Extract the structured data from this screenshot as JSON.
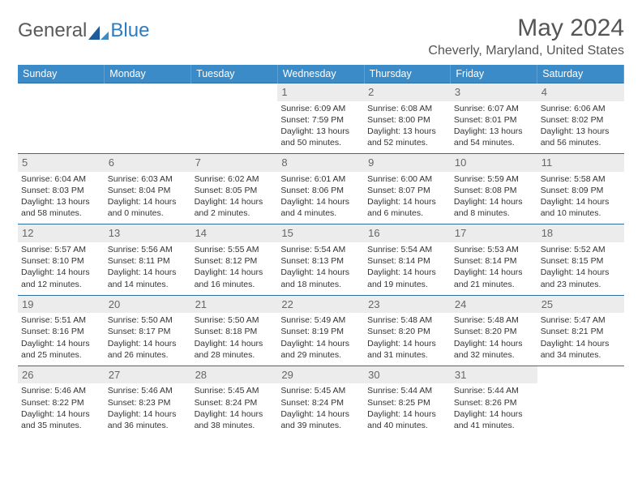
{
  "logo": {
    "part1": "General",
    "part2": "Blue"
  },
  "header": {
    "month_title": "May 2024",
    "location": "Cheverly, Maryland, United States"
  },
  "colors": {
    "header_bg": "#3b8bc8",
    "header_text": "#ffffff",
    "border": "#2f6ea1",
    "daynum_bg": "#ececec",
    "body_text": "#333333",
    "title_text": "#555555",
    "logo_grey": "#5a5a5a",
    "logo_blue": "#2f7bbf"
  },
  "weekdays": [
    "Sunday",
    "Monday",
    "Tuesday",
    "Wednesday",
    "Thursday",
    "Friday",
    "Saturday"
  ],
  "weeks": [
    [
      {
        "day": "",
        "sunrise": "",
        "sunset": "",
        "daylight": ""
      },
      {
        "day": "",
        "sunrise": "",
        "sunset": "",
        "daylight": ""
      },
      {
        "day": "",
        "sunrise": "",
        "sunset": "",
        "daylight": ""
      },
      {
        "day": "1",
        "sunrise": "Sunrise: 6:09 AM",
        "sunset": "Sunset: 7:59 PM",
        "daylight": "Daylight: 13 hours and 50 minutes."
      },
      {
        "day": "2",
        "sunrise": "Sunrise: 6:08 AM",
        "sunset": "Sunset: 8:00 PM",
        "daylight": "Daylight: 13 hours and 52 minutes."
      },
      {
        "day": "3",
        "sunrise": "Sunrise: 6:07 AM",
        "sunset": "Sunset: 8:01 PM",
        "daylight": "Daylight: 13 hours and 54 minutes."
      },
      {
        "day": "4",
        "sunrise": "Sunrise: 6:06 AM",
        "sunset": "Sunset: 8:02 PM",
        "daylight": "Daylight: 13 hours and 56 minutes."
      }
    ],
    [
      {
        "day": "5",
        "sunrise": "Sunrise: 6:04 AM",
        "sunset": "Sunset: 8:03 PM",
        "daylight": "Daylight: 13 hours and 58 minutes."
      },
      {
        "day": "6",
        "sunrise": "Sunrise: 6:03 AM",
        "sunset": "Sunset: 8:04 PM",
        "daylight": "Daylight: 14 hours and 0 minutes."
      },
      {
        "day": "7",
        "sunrise": "Sunrise: 6:02 AM",
        "sunset": "Sunset: 8:05 PM",
        "daylight": "Daylight: 14 hours and 2 minutes."
      },
      {
        "day": "8",
        "sunrise": "Sunrise: 6:01 AM",
        "sunset": "Sunset: 8:06 PM",
        "daylight": "Daylight: 14 hours and 4 minutes."
      },
      {
        "day": "9",
        "sunrise": "Sunrise: 6:00 AM",
        "sunset": "Sunset: 8:07 PM",
        "daylight": "Daylight: 14 hours and 6 minutes."
      },
      {
        "day": "10",
        "sunrise": "Sunrise: 5:59 AM",
        "sunset": "Sunset: 8:08 PM",
        "daylight": "Daylight: 14 hours and 8 minutes."
      },
      {
        "day": "11",
        "sunrise": "Sunrise: 5:58 AM",
        "sunset": "Sunset: 8:09 PM",
        "daylight": "Daylight: 14 hours and 10 minutes."
      }
    ],
    [
      {
        "day": "12",
        "sunrise": "Sunrise: 5:57 AM",
        "sunset": "Sunset: 8:10 PM",
        "daylight": "Daylight: 14 hours and 12 minutes."
      },
      {
        "day": "13",
        "sunrise": "Sunrise: 5:56 AM",
        "sunset": "Sunset: 8:11 PM",
        "daylight": "Daylight: 14 hours and 14 minutes."
      },
      {
        "day": "14",
        "sunrise": "Sunrise: 5:55 AM",
        "sunset": "Sunset: 8:12 PM",
        "daylight": "Daylight: 14 hours and 16 minutes."
      },
      {
        "day": "15",
        "sunrise": "Sunrise: 5:54 AM",
        "sunset": "Sunset: 8:13 PM",
        "daylight": "Daylight: 14 hours and 18 minutes."
      },
      {
        "day": "16",
        "sunrise": "Sunrise: 5:54 AM",
        "sunset": "Sunset: 8:14 PM",
        "daylight": "Daylight: 14 hours and 19 minutes."
      },
      {
        "day": "17",
        "sunrise": "Sunrise: 5:53 AM",
        "sunset": "Sunset: 8:14 PM",
        "daylight": "Daylight: 14 hours and 21 minutes."
      },
      {
        "day": "18",
        "sunrise": "Sunrise: 5:52 AM",
        "sunset": "Sunset: 8:15 PM",
        "daylight": "Daylight: 14 hours and 23 minutes."
      }
    ],
    [
      {
        "day": "19",
        "sunrise": "Sunrise: 5:51 AM",
        "sunset": "Sunset: 8:16 PM",
        "daylight": "Daylight: 14 hours and 25 minutes."
      },
      {
        "day": "20",
        "sunrise": "Sunrise: 5:50 AM",
        "sunset": "Sunset: 8:17 PM",
        "daylight": "Daylight: 14 hours and 26 minutes."
      },
      {
        "day": "21",
        "sunrise": "Sunrise: 5:50 AM",
        "sunset": "Sunset: 8:18 PM",
        "daylight": "Daylight: 14 hours and 28 minutes."
      },
      {
        "day": "22",
        "sunrise": "Sunrise: 5:49 AM",
        "sunset": "Sunset: 8:19 PM",
        "daylight": "Daylight: 14 hours and 29 minutes."
      },
      {
        "day": "23",
        "sunrise": "Sunrise: 5:48 AM",
        "sunset": "Sunset: 8:20 PM",
        "daylight": "Daylight: 14 hours and 31 minutes."
      },
      {
        "day": "24",
        "sunrise": "Sunrise: 5:48 AM",
        "sunset": "Sunset: 8:20 PM",
        "daylight": "Daylight: 14 hours and 32 minutes."
      },
      {
        "day": "25",
        "sunrise": "Sunrise: 5:47 AM",
        "sunset": "Sunset: 8:21 PM",
        "daylight": "Daylight: 14 hours and 34 minutes."
      }
    ],
    [
      {
        "day": "26",
        "sunrise": "Sunrise: 5:46 AM",
        "sunset": "Sunset: 8:22 PM",
        "daylight": "Daylight: 14 hours and 35 minutes."
      },
      {
        "day": "27",
        "sunrise": "Sunrise: 5:46 AM",
        "sunset": "Sunset: 8:23 PM",
        "daylight": "Daylight: 14 hours and 36 minutes."
      },
      {
        "day": "28",
        "sunrise": "Sunrise: 5:45 AM",
        "sunset": "Sunset: 8:24 PM",
        "daylight": "Daylight: 14 hours and 38 minutes."
      },
      {
        "day": "29",
        "sunrise": "Sunrise: 5:45 AM",
        "sunset": "Sunset: 8:24 PM",
        "daylight": "Daylight: 14 hours and 39 minutes."
      },
      {
        "day": "30",
        "sunrise": "Sunrise: 5:44 AM",
        "sunset": "Sunset: 8:25 PM",
        "daylight": "Daylight: 14 hours and 40 minutes."
      },
      {
        "day": "31",
        "sunrise": "Sunrise: 5:44 AM",
        "sunset": "Sunset: 8:26 PM",
        "daylight": "Daylight: 14 hours and 41 minutes."
      },
      {
        "day": "",
        "sunrise": "",
        "sunset": "",
        "daylight": ""
      }
    ]
  ]
}
